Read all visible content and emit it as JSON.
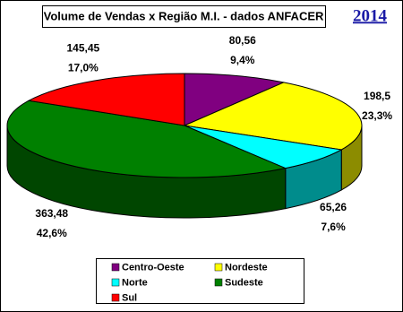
{
  "chart_data": {
    "type": "pie3d",
    "title": "Volume de Vendas x Região M.I. - dados ANFACER",
    "year": "2014",
    "categories": [
      "Centro-Oeste",
      "Nordeste",
      "Norte",
      "Sudeste",
      "Sul"
    ],
    "values": [
      80.56,
      198.5,
      65.26,
      363.48,
      145.45
    ],
    "value_labels": [
      "80,56",
      "198,5",
      "65,26",
      "363,48",
      "145,45"
    ],
    "percents": [
      9.4,
      23.3,
      7.6,
      42.6,
      17.0
    ],
    "percent_labels": [
      "9,4%",
      "23,3%",
      "7,6%",
      "42,6%",
      "17,0%"
    ],
    "colors": [
      "#800080",
      "#ffff00",
      "#00ffff",
      "#008000",
      "#ff0000"
    ],
    "legend": "bottom"
  }
}
